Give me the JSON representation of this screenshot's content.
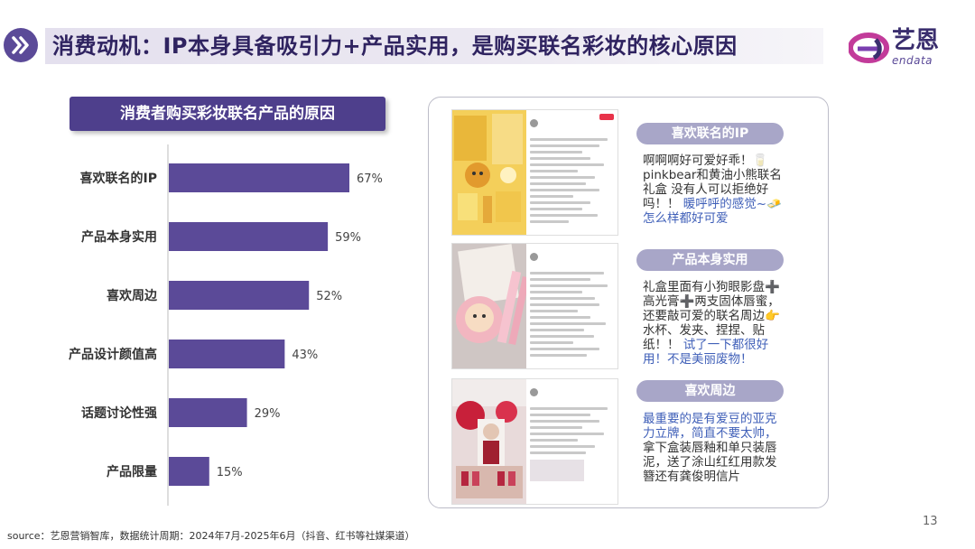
{
  "title": "消费动机：IP本身具备吸引力+产品实用，是购买联名彩妆的核心原因",
  "logo": {
    "name": "艺恩",
    "sub": "endata"
  },
  "chart_header": "消费者购买彩妆联名产品的原因",
  "chart_data": {
    "type": "bar",
    "orientation": "horizontal",
    "title": "消费者购买彩妆联名产品的原因",
    "categories": [
      "喜欢联名的IP",
      "产品本身实用",
      "喜欢周边",
      "产品设计颜值高",
      "话题讨论性强",
      "产品限量"
    ],
    "values": [
      67,
      59,
      52,
      43,
      29,
      15
    ],
    "value_labels": [
      "67%",
      "59%",
      "52%",
      "43%",
      "29%",
      "15%"
    ],
    "xlim": [
      0,
      100
    ],
    "unit": "%",
    "bar_color": "#5b4a98",
    "grid": false
  },
  "panel": {
    "items": [
      {
        "label": "喜欢联名的IP",
        "text_dark": "啊啊啊好可爱好乖！🥛 pinkbear和黄油小熊联名礼盒 没有人可以拒绝好吗！！",
        "text_blue": "暖呼呼的感觉~🧈 怎么样都好可爱"
      },
      {
        "label": "产品本身实用",
        "text_dark": "礼盒里面有小狗眼影盘➕高光膏➕两支固体唇蜜，还要敲可爱的联名周边👉水杯、发夹、捏捏、贴纸！！",
        "text_blue": "试了一下都很好用！不是美丽废物！"
      },
      {
        "label": "喜欢周边",
        "text_blue": "最重要的是有爱豆的亚克力立牌，简直不要太帅，",
        "text_dark": "拿下盒装唇釉和单只装唇泥，送了涂山红红用款发簪还有龚俊明信片"
      }
    ]
  },
  "source": "source：艺恩营销智库，数据统计周期：2024年7月-2025年6月（抖音、红书等社媒渠道）",
  "page_number": "13",
  "colors": {
    "accent": "#5b4a98",
    "header": "#4e3f8c",
    "pill": "#a8a6c8",
    "blue_text": "#3f5fb8"
  }
}
